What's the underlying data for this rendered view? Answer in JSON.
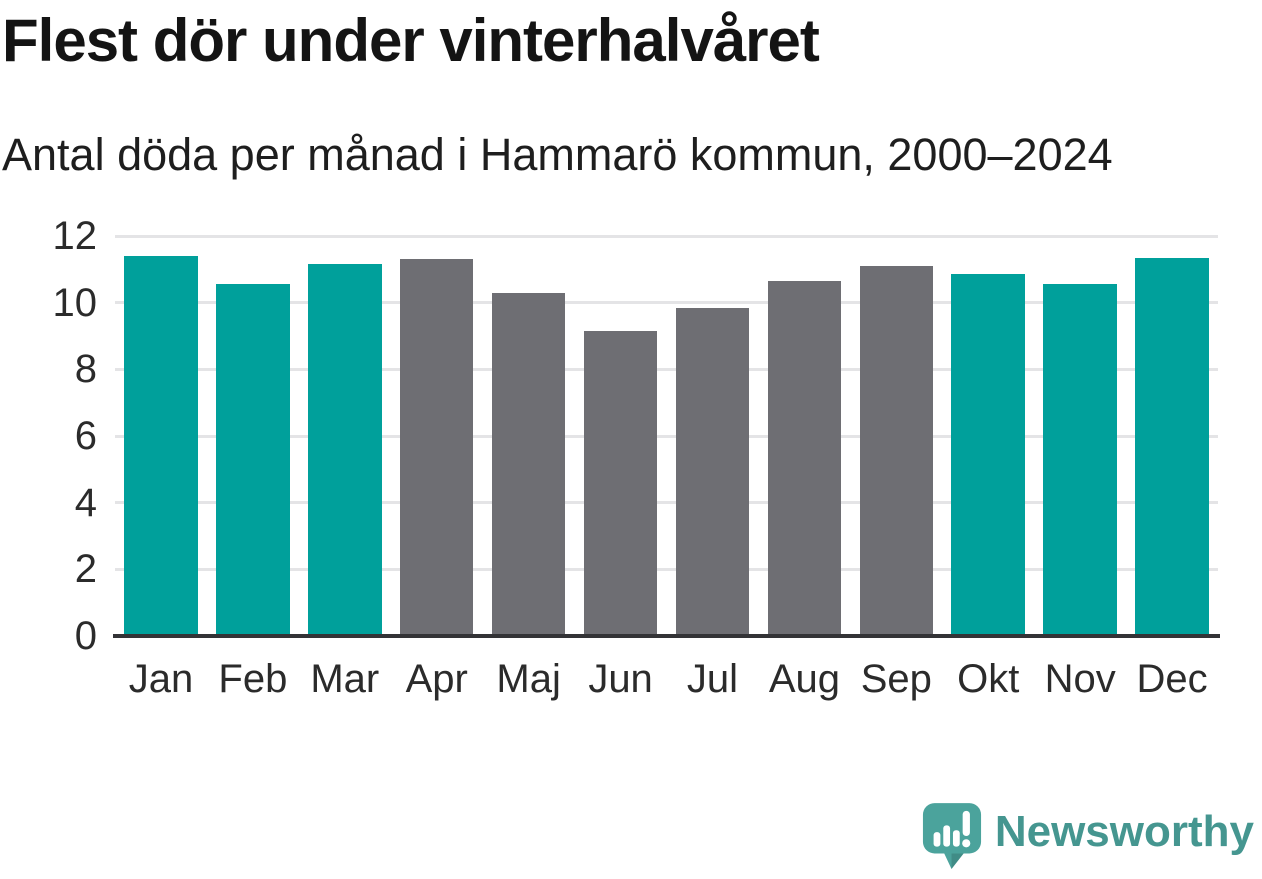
{
  "title": "Flest dör under vinterhalvåret",
  "subtitle": "Antal döda per månad i Hammarö kommun, 2000–2024",
  "chart_data": {
    "type": "bar",
    "title": "Flest dör under vinterhalvåret",
    "subtitle": "Antal döda per månad i Hammarö kommun, 2000–2024",
    "categories": [
      "Jan",
      "Feb",
      "Mar",
      "Apr",
      "Maj",
      "Jun",
      "Jul",
      "Aug",
      "Sep",
      "Okt",
      "Nov",
      "Dec"
    ],
    "values": [
      11.4,
      10.55,
      11.15,
      11.3,
      10.3,
      9.15,
      9.85,
      10.65,
      11.1,
      10.85,
      10.55,
      11.35
    ],
    "bar_colors": [
      "teal",
      "teal",
      "teal",
      "gray",
      "gray",
      "gray",
      "gray",
      "gray",
      "gray",
      "teal",
      "teal",
      "teal"
    ],
    "colors": {
      "teal": "#00a09b",
      "gray": "#6e6e73"
    },
    "xlabel": "",
    "ylabel": "",
    "ylim": [
      0,
      12
    ],
    "yticks": [
      0,
      2,
      4,
      6,
      8,
      10,
      12
    ],
    "grid": "horizontal-only",
    "legend": "none"
  },
  "footer": {
    "brand": "Newsworthy",
    "brand_color": "#459690",
    "logo_color": "#4ba39c"
  }
}
